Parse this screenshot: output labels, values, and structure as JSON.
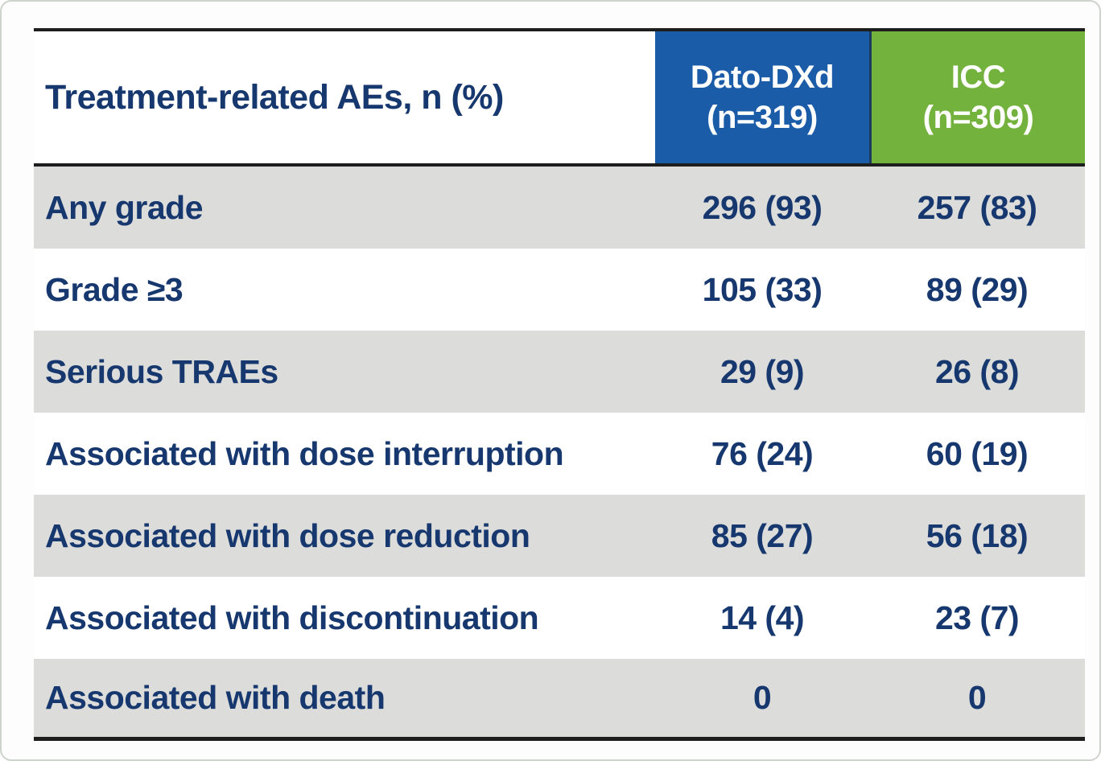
{
  "chart_data": {
    "type": "table",
    "title": "Treatment-related AEs, n (%)",
    "columns": [
      "Treatment-related AEs, n (%)",
      "Dato-DXd (n=319)",
      "ICC (n=309)"
    ],
    "rows": [
      [
        "Any grade",
        "296 (93)",
        "257 (83)"
      ],
      [
        "Grade ≥3",
        "105 (33)",
        "89 (29)"
      ],
      [
        "Serious TRAEs",
        "29 (9)",
        "26 (8)"
      ],
      [
        "Associated with dose interruption",
        "76 (24)",
        "60 (19)"
      ],
      [
        "Associated with dose reduction",
        "85 (27)",
        "56 (18)"
      ],
      [
        "Associated with discontinuation",
        "14 (4)",
        "23 (7)"
      ],
      [
        "Associated with death",
        "0",
        "0"
      ]
    ]
  },
  "header": {
    "label": "Treatment-related AEs, n (%)",
    "dato": {
      "name": "Dato-DXd",
      "n": "(n=319)"
    },
    "icc": {
      "name": "ICC",
      "n": "(n=309)"
    }
  },
  "rows": [
    {
      "label": "Any grade",
      "dato": "296 (93)",
      "icc": "257 (83)"
    },
    {
      "label": "Grade ≥3",
      "dato": "105 (33)",
      "icc": "89 (29)"
    },
    {
      "label": "Serious TRAEs",
      "dato": "29 (9)",
      "icc": "26 (8)"
    },
    {
      "label": "Associated with dose interruption",
      "dato": "76 (24)",
      "icc": "60 (19)"
    },
    {
      "label": "Associated with dose reduction",
      "dato": "85 (27)",
      "icc": "56 (18)"
    },
    {
      "label": "Associated with discontinuation",
      "dato": "14 (4)",
      "icc": "23 (7)"
    },
    {
      "label": "Associated with death",
      "dato": "0",
      "icc": "0"
    }
  ],
  "colors": {
    "dato_header_bg": "#1a5ca8",
    "icc_header_bg": "#74b23e",
    "header_text": "#ffffff",
    "body_text": "#17386e",
    "stripe_row_bg": "#dcdcdb",
    "rule_dark": "#1e1e1e"
  }
}
